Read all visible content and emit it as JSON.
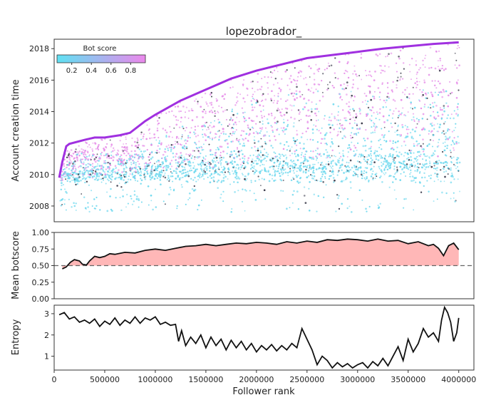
{
  "chart_data": [
    {
      "id": "scatter",
      "type": "scatter",
      "title": "lopezobrador_",
      "xlabel": "",
      "ylabel": "Account creation time",
      "xlim": [
        0,
        4150000
      ],
      "ylim": [
        2007,
        2018.6
      ],
      "yticks": [
        2008,
        2010,
        2012,
        2014,
        2016,
        2018
      ],
      "xticks": [],
      "upper_edge": {
        "x": [
          50000,
          80000,
          120000,
          150000,
          300000,
          400000,
          500000,
          650000,
          750000,
          900000,
          1000000,
          1250000,
          1500000,
          1750000,
          2000000,
          2250000,
          2500000,
          2750000,
          3000000,
          3250000,
          3500000,
          3750000,
          4000000
        ],
        "y": [
          2009.8,
          2010.8,
          2011.8,
          2011.95,
          2012.2,
          2012.35,
          2012.35,
          2012.5,
          2012.65,
          2013.4,
          2013.8,
          2014.7,
          2015.4,
          2016.1,
          2016.6,
          2017.0,
          2017.4,
          2017.6,
          2017.8,
          2018.0,
          2018.15,
          2018.3,
          2018.4
        ]
      },
      "colorbar": {
        "label": "Bot score",
        "range": [
          0.05,
          0.95
        ],
        "ticks": [
          "0.2",
          "0.4",
          "0.6",
          "0.8"
        ],
        "colors": [
          "#5fe1f2",
          "#ec88ec"
        ]
      },
      "colors": {
        "low": "#5fe1f2",
        "high": "#ec88ec",
        "edge": "#a030e0",
        "dark": "#222222"
      }
    },
    {
      "id": "botscore",
      "type": "area",
      "xlabel": "",
      "ylabel": "Mean botscore",
      "xlim": [
        0,
        4150000
      ],
      "ylim": [
        0,
        1
      ],
      "yticks": [
        "0.00",
        "0.25",
        "0.50",
        "0.75",
        "1.00"
      ],
      "threshold": 0.5,
      "fill_color": "#ffb7b7",
      "series": [
        {
          "x": [
            80000,
            120000,
            160000,
            200000,
            250000,
            280000,
            320000,
            350000,
            400000,
            450000,
            500000,
            550000,
            600000,
            700000,
            800000,
            900000,
            1000000,
            1100000,
            1200000,
            1300000,
            1400000,
            1500000,
            1600000,
            1700000,
            1800000,
            1900000,
            2000000,
            2100000,
            2200000,
            2300000,
            2400000,
            2500000,
            2600000,
            2700000,
            2800000,
            2900000,
            3000000,
            3100000,
            3200000,
            3300000,
            3400000,
            3500000,
            3600000,
            3700000,
            3750000,
            3800000,
            3850000,
            3900000,
            3950000,
            4000000
          ],
          "y": [
            0.45,
            0.48,
            0.55,
            0.59,
            0.57,
            0.52,
            0.51,
            0.57,
            0.64,
            0.62,
            0.64,
            0.68,
            0.67,
            0.7,
            0.69,
            0.73,
            0.75,
            0.73,
            0.76,
            0.79,
            0.8,
            0.82,
            0.8,
            0.82,
            0.84,
            0.83,
            0.85,
            0.84,
            0.82,
            0.86,
            0.84,
            0.87,
            0.85,
            0.89,
            0.88,
            0.9,
            0.89,
            0.87,
            0.9,
            0.87,
            0.88,
            0.83,
            0.86,
            0.8,
            0.82,
            0.76,
            0.65,
            0.8,
            0.84,
            0.74
          ]
        }
      ]
    },
    {
      "id": "entropy",
      "type": "line",
      "xlabel": "Follower rank",
      "ylabel": "Entropy",
      "xlim": [
        0,
        4150000
      ],
      "ylim": [
        0.35,
        3.4
      ],
      "yticks": [
        "1",
        "2",
        "3"
      ],
      "xticks": [
        "0",
        "500000",
        "1000000",
        "1500000",
        "2000000",
        "2500000",
        "3000000",
        "3500000",
        "4000000"
      ],
      "xtick_values": [
        0,
        500000,
        1000000,
        1500000,
        2000000,
        2500000,
        3000000,
        3500000,
        4000000
      ],
      "series": [
        {
          "x": [
            50000,
            100000,
            150000,
            200000,
            250000,
            300000,
            350000,
            400000,
            450000,
            500000,
            550000,
            600000,
            650000,
            700000,
            750000,
            800000,
            850000,
            900000,
            950000,
            1000000,
            1050000,
            1100000,
            1150000,
            1200000,
            1230000,
            1260000,
            1300000,
            1350000,
            1400000,
            1450000,
            1500000,
            1550000,
            1600000,
            1650000,
            1700000,
            1750000,
            1800000,
            1850000,
            1900000,
            1950000,
            2000000,
            2050000,
            2100000,
            2150000,
            2200000,
            2250000,
            2300000,
            2350000,
            2400000,
            2450000,
            2500000,
            2550000,
            2600000,
            2650000,
            2700000,
            2750000,
            2800000,
            2850000,
            2900000,
            2950000,
            3000000,
            3050000,
            3100000,
            3150000,
            3200000,
            3250000,
            3300000,
            3350000,
            3400000,
            3450000,
            3500000,
            3550000,
            3600000,
            3650000,
            3700000,
            3750000,
            3800000,
            3830000,
            3860000,
            3890000,
            3920000,
            3950000,
            3980000,
            4000000
          ],
          "y": [
            2.95,
            3.05,
            2.75,
            2.85,
            2.6,
            2.7,
            2.55,
            2.75,
            2.4,
            2.65,
            2.5,
            2.8,
            2.45,
            2.7,
            2.55,
            2.85,
            2.55,
            2.8,
            2.7,
            2.85,
            2.5,
            2.6,
            2.45,
            2.5,
            1.7,
            2.2,
            1.5,
            1.9,
            1.6,
            2.0,
            1.4,
            1.9,
            1.5,
            1.8,
            1.3,
            1.75,
            1.4,
            1.7,
            1.3,
            1.6,
            1.2,
            1.5,
            1.3,
            1.55,
            1.25,
            1.5,
            1.3,
            1.6,
            1.4,
            2.3,
            1.8,
            1.3,
            0.6,
            1.0,
            0.8,
            0.45,
            0.7,
            0.5,
            0.65,
            0.45,
            0.6,
            0.7,
            0.45,
            0.75,
            0.55,
            0.9,
            0.55,
            1.0,
            1.45,
            0.8,
            1.8,
            1.2,
            1.6,
            2.3,
            1.9,
            2.1,
            1.7,
            2.7,
            3.3,
            3.05,
            2.6,
            1.7,
            2.1,
            2.8
          ]
        }
      ]
    }
  ]
}
